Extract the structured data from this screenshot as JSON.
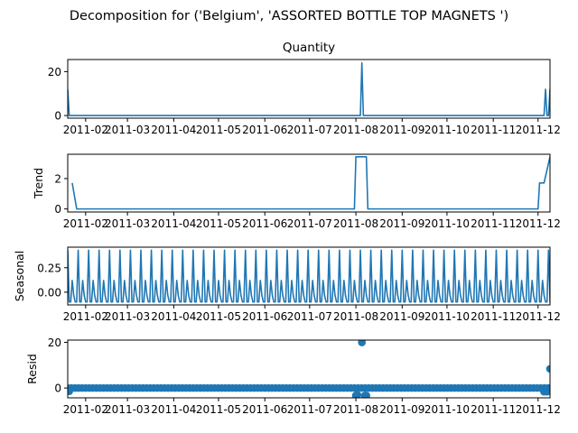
{
  "figure": {
    "title": "Decomposition for ('Belgium', 'ASSORTED BOTTLE TOP  MAGNETS ')"
  },
  "chart_data": [
    {
      "type": "line",
      "title": "Quantity",
      "xlabel": "",
      "ylabel": "",
      "yticks": [
        0,
        20
      ],
      "ylim": [
        -1.2,
        25.5
      ],
      "xticks": [
        "2011-02",
        "2011-03",
        "2011-04",
        "2011-05",
        "2011-06",
        "2011-07",
        "2011-08",
        "2011-09",
        "2011-10",
        "2011-11",
        "2011-12"
      ],
      "x_start": "2011-01-20",
      "x_end": "2011-12-09",
      "series": [
        {
          "color": "#1f77b4",
          "points": [
            [
              "2011-01-20",
              12
            ],
            [
              "2011-01-21",
              0
            ],
            [
              "2011-08-04",
              0
            ],
            [
              "2011-08-05",
              24
            ],
            [
              "2011-08-06",
              0
            ],
            [
              "2011-12-05",
              0
            ],
            [
              "2011-12-06",
              12
            ],
            [
              "2011-12-07",
              0
            ],
            [
              "2011-12-08",
              0
            ],
            [
              "2011-12-09",
              12
            ],
            [
              "2011-12-10",
              0
            ]
          ]
        }
      ]
    },
    {
      "type": "line",
      "title": "",
      "xlabel": "",
      "ylabel": "Trend",
      "yticks": [
        0,
        2
      ],
      "ylim": [
        -0.2,
        3.6
      ],
      "xticks": [
        "2011-02",
        "2011-03",
        "2011-04",
        "2011-05",
        "2011-06",
        "2011-07",
        "2011-08",
        "2011-09",
        "2011-10",
        "2011-11",
        "2011-12"
      ],
      "x_start": "2011-01-20",
      "x_end": "2011-12-09",
      "series": [
        {
          "color": "#1f77b4",
          "points": [
            [
              "2011-01-23",
              1.71
            ],
            [
              "2011-01-26",
              0
            ],
            [
              "2011-07-31",
              0
            ],
            [
              "2011-08-01",
              3.43
            ],
            [
              "2011-08-08",
              3.43
            ],
            [
              "2011-08-09",
              0
            ],
            [
              "2011-12-01",
              0
            ],
            [
              "2011-12-02",
              1.71
            ],
            [
              "2011-12-05",
              1.71
            ],
            [
              "2011-12-09",
              3.43
            ]
          ]
        }
      ]
    },
    {
      "type": "line",
      "title": "",
      "xlabel": "",
      "ylabel": "Seasonal",
      "yticks": [
        0.0,
        0.25
      ],
      "ytick_labels": [
        "0.00",
        "0.25"
      ],
      "ylim": [
        -0.13,
        0.46
      ],
      "xticks": [
        "2011-02",
        "2011-03",
        "2011-04",
        "2011-05",
        "2011-06",
        "2011-07",
        "2011-08",
        "2011-09",
        "2011-10",
        "2011-11",
        "2011-12"
      ],
      "x_start": "2011-01-20",
      "x_end": "2011-12-09",
      "period_days": 7,
      "pattern": [
        0.43,
        -0.1,
        -0.1,
        0.12,
        -0.03,
        -0.1,
        -0.1
      ],
      "series": [
        {
          "color": "#1f77b4"
        }
      ]
    },
    {
      "type": "scatter",
      "title": "",
      "xlabel": "",
      "ylabel": "Resid",
      "yticks": [
        0,
        20
      ],
      "ylim": [
        -4.3,
        21.0
      ],
      "xticks": [
        "2011-02",
        "2011-03",
        "2011-04",
        "2011-05",
        "2011-06",
        "2011-07",
        "2011-08",
        "2011-09",
        "2011-10",
        "2011-11",
        "2011-12"
      ],
      "x_start": "2011-01-20",
      "x_end": "2011-12-09",
      "baseline": 0,
      "series": [
        {
          "color": "#1f77b4",
          "baseline_points_every_days": 2.4,
          "baseline_value": 0,
          "outliers": [
            [
              "2011-01-21",
              -1.4
            ],
            [
              "2011-08-01",
              -3.3
            ],
            [
              "2011-08-02",
              -3.0
            ],
            [
              "2011-08-05",
              20.0
            ],
            [
              "2011-08-07",
              -3.3
            ],
            [
              "2011-08-08",
              -3.3
            ],
            [
              "2011-12-05",
              -1.6
            ],
            [
              "2011-12-07",
              -1.6
            ],
            [
              "2011-12-09",
              8.4
            ]
          ]
        }
      ]
    }
  ]
}
